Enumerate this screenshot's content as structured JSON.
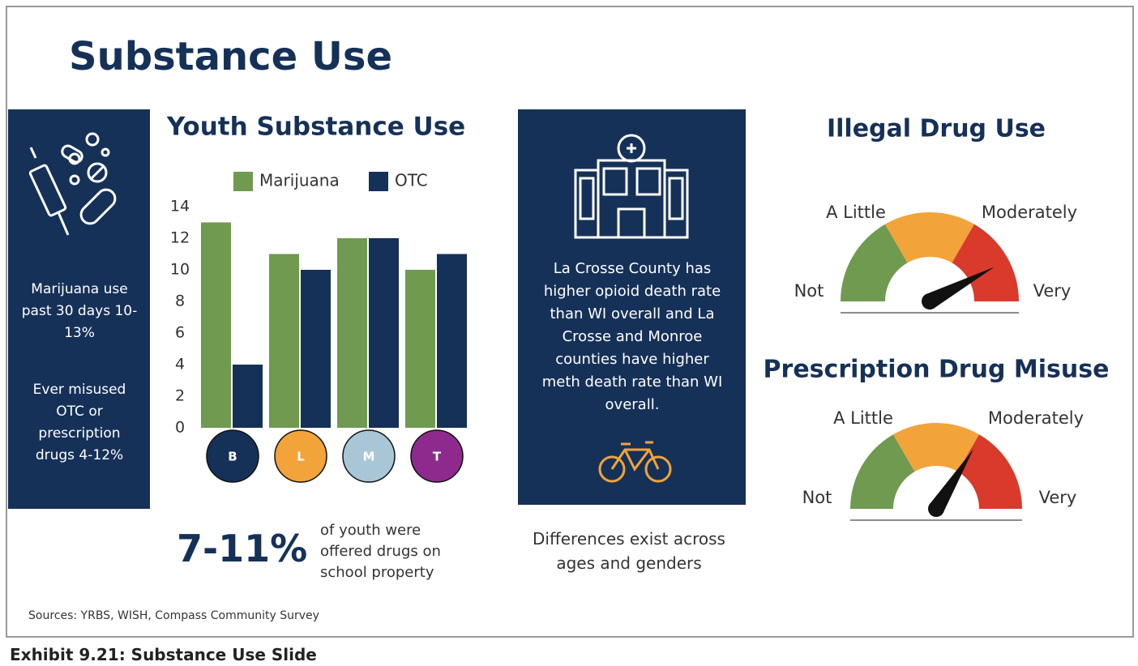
{
  "title": "Substance Use",
  "left_panel": {
    "texts": [
      "Marijuana use past 30 days 10-13%",
      "Ever misused OTC or prescription drugs 4-12%"
    ]
  },
  "chart_data": {
    "type": "bar",
    "title": "Youth Substance Use",
    "categories": [
      "B",
      "L",
      "M",
      "T"
    ],
    "category_colors": [
      "#163158",
      "#f2a33a",
      "#a9c6d6",
      "#8e2a8e"
    ],
    "series": [
      {
        "name": "Marijuana",
        "color": "#6f9a50",
        "values": [
          13,
          11,
          12,
          10
        ]
      },
      {
        "name": "OTC",
        "color": "#163158",
        "values": [
          4,
          10,
          12,
          11
        ]
      }
    ],
    "ylim": [
      0,
      14
    ],
    "yticks": [
      0,
      2,
      4,
      6,
      8,
      10,
      12,
      14
    ],
    "grid": false,
    "legend": "top"
  },
  "stat": {
    "value": "7-11%",
    "text": "of youth were offered drugs on school property"
  },
  "info_panel": {
    "text": "La Crosse County has higher opioid death rate than WI overall and La Crosse and Monroe counties have higher meth death rate than WI overall."
  },
  "note": "Differences exist across ages and genders",
  "gauges": [
    {
      "title": "Illegal Drug Use",
      "labels": [
        "Not",
        "A Little",
        "Moderately",
        "Very"
      ]
    },
    {
      "title": "Prescription Drug Misuse",
      "labels": [
        "Not",
        "A Little",
        "Moderately",
        "Very"
      ]
    }
  ],
  "sources": "Sources: YRBS, WISH, Compass Community Survey",
  "caption": "Exhibit 9.21: Substance Use Slide"
}
